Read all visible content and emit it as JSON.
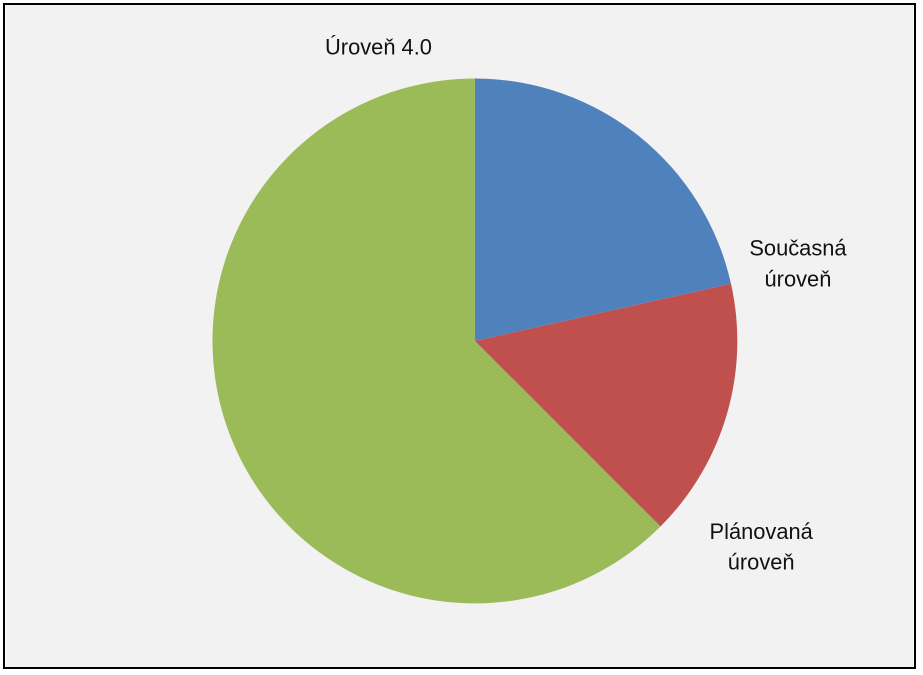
{
  "chart_data": {
    "type": "pie",
    "title": "",
    "start_angle_deg": 0,
    "direction": "clockwise",
    "background": "#f2f2f2",
    "slices": [
      {
        "label_lines": [
          "Současná",
          "úroveň"
        ],
        "value": 21.5,
        "color": "#4f81bd"
      },
      {
        "label_lines": [
          "Plánovaná",
          "úroveň"
        ],
        "value": 16,
        "color": "#c0504d"
      },
      {
        "label_lines": [
          "Úroveň 4.0"
        ],
        "value": 62.5,
        "color": "#9bbb59"
      }
    ]
  }
}
